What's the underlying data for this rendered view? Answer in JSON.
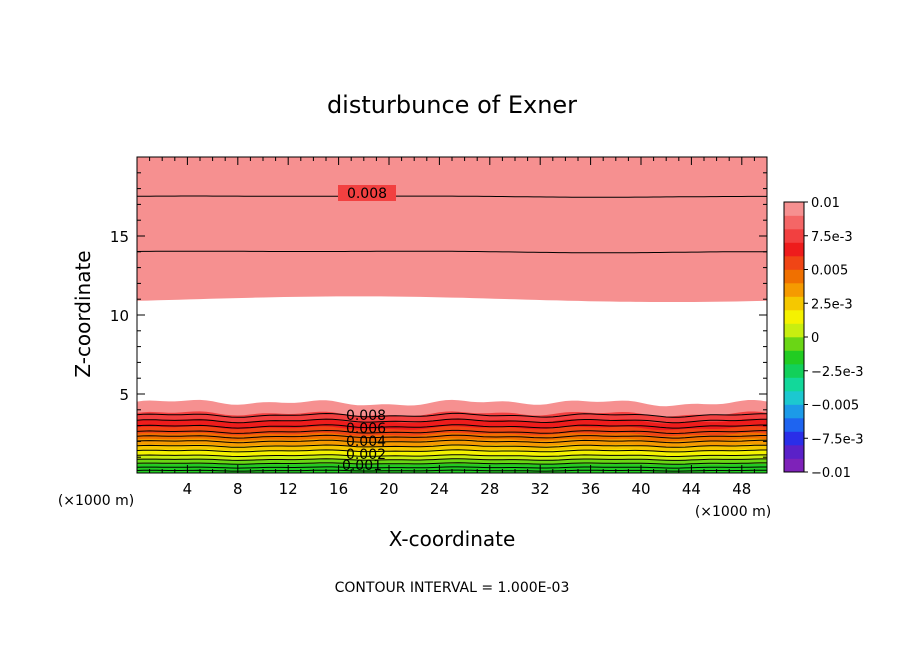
{
  "chart_data": {
    "type": "contour",
    "title": "disturbunce of Exner",
    "xlabel": "X-coordinate",
    "ylabel": "Z-coordinate",
    "x_unit": "(×1000 m)",
    "y_unit": "(×1000 m)",
    "xlim": [
      0,
      50
    ],
    "ylim": [
      0,
      20
    ],
    "x_ticks": [
      4,
      8,
      12,
      16,
      20,
      24,
      28,
      32,
      36,
      40,
      44,
      48
    ],
    "y_ticks": [
      5,
      10,
      15
    ],
    "footer": "CONTOUR INTERVAL = 1.000E-03",
    "contour_labels": [
      "0.008",
      "0.008",
      "0.006",
      "0.004",
      "0.002",
      "0.001"
    ],
    "colorbar": {
      "range": [
        -0.01,
        0.01
      ],
      "labels": [
        "0.01",
        "7.5e-3",
        "0.005",
        "2.5e-3",
        "0",
        "−2.5e-3",
        "−0.005",
        "−7.5e-3",
        "−0.01"
      ],
      "colors": [
        "#7e22b9",
        "#5a21c8",
        "#2a2ee8",
        "#1e64f0",
        "#1c9ae8",
        "#1cc8d0",
        "#12d89a",
        "#12d05a",
        "#22cc22",
        "#6ad615",
        "#c8ee10",
        "#f5f200",
        "#f5c800",
        "#f59a00",
        "#f07000",
        "#f04515",
        "#ee1c1c",
        "#f24040",
        "#f46666",
        "#f69090"
      ]
    },
    "band_colors": [
      "#22cc22",
      "#6ad615",
      "#c8ee10",
      "#f5f200",
      "#f5c800",
      "#f59a00",
      "#f07000",
      "#f04515",
      "#ee1c1c",
      "#f24040",
      "#f46666",
      "#f69090"
    ]
  }
}
